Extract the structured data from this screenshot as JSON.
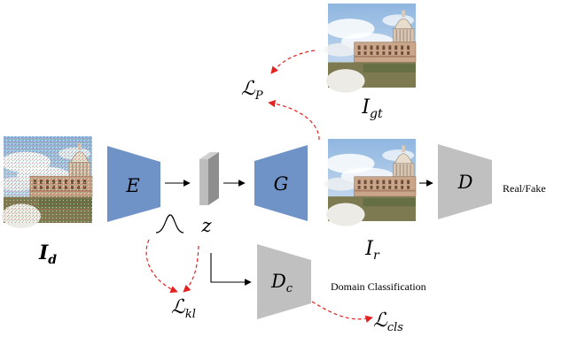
{
  "inputs": {
    "degraded_label": "I",
    "degraded_sub": "d",
    "groundtruth_label": "I",
    "groundtruth_sub": "gt",
    "restored_label": "I",
    "restored_sub": "r"
  },
  "modules": {
    "encoder": "E",
    "generator": "G",
    "discriminator": "D",
    "domain_classifier": "D",
    "domain_classifier_sub": "c",
    "latent": "z"
  },
  "losses": {
    "perceptual": "ℒ",
    "perceptual_sub": "P",
    "kl": "ℒ",
    "kl_sub": "kl",
    "cls": "ℒ",
    "cls_sub": "cls"
  },
  "captions": {
    "real_fake": "Real/Fake",
    "domain_classification": "Domain Classification"
  },
  "colors": {
    "encoder_fill": "#6f93c6",
    "generator_fill": "#6f93c6",
    "discriminator_fill": "#c0c0c0",
    "loss_arrow": "#e52121",
    "flow_arrow": "#000000"
  },
  "icons": {
    "photo": "capitol-building-photo",
    "distribution": "gaussian-curve-icon"
  }
}
